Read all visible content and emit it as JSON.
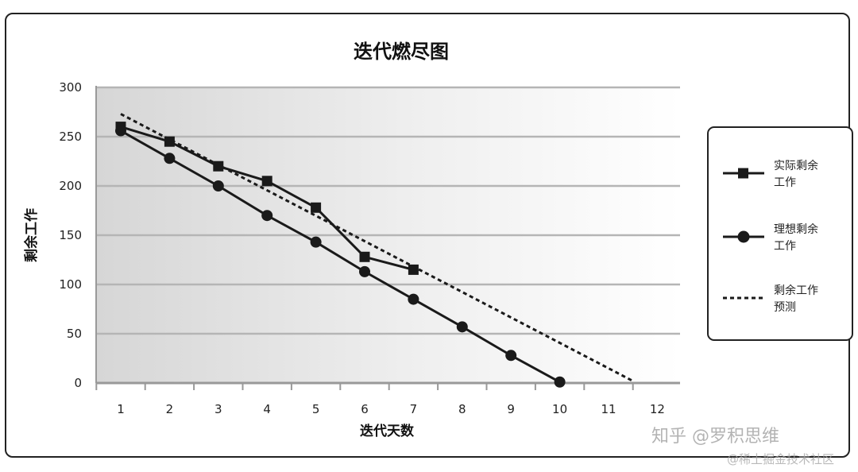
{
  "chart_data": {
    "type": "line",
    "title": "迭代燃尽图",
    "xlabel": "迭代天数",
    "ylabel": "剩余工作",
    "categories": [
      1,
      2,
      3,
      4,
      5,
      6,
      7,
      8,
      9,
      10,
      11,
      12
    ],
    "ylim": [
      0,
      300
    ],
    "yticks": [
      0,
      50,
      100,
      150,
      200,
      250,
      300
    ],
    "grid": true,
    "legend_position": "right",
    "series": [
      {
        "name": "实际剩余工作",
        "name_lines": [
          "实际剩余",
          "工作"
        ],
        "marker": "square",
        "style": "solid",
        "x": [
          1,
          2,
          3,
          4,
          5,
          6,
          7
        ],
        "y": [
          260,
          245,
          220,
          205,
          178,
          128,
          115
        ]
      },
      {
        "name": "理想剩余工作",
        "name_lines": [
          "理想剩余",
          "工作"
        ],
        "marker": "circle",
        "style": "solid",
        "x": [
          1,
          2,
          3,
          4,
          5,
          6,
          7,
          8,
          9,
          10
        ],
        "y": [
          256,
          228,
          200,
          170,
          143,
          113,
          85,
          57,
          28,
          1
        ]
      },
      {
        "name": "剩余工作预测",
        "name_lines": [
          "剩余工作",
          "预测"
        ],
        "marker": "none",
        "style": "dotted",
        "x": [
          1,
          11.5
        ],
        "y": [
          273,
          2
        ]
      }
    ]
  },
  "watermark": {
    "text": "知乎 @罗积思维",
    "subtext": "@稀土掘金技术社区"
  },
  "colors": {
    "line": "#1a1a1a",
    "grid": "#b5b5b5",
    "frame": "#222222"
  }
}
